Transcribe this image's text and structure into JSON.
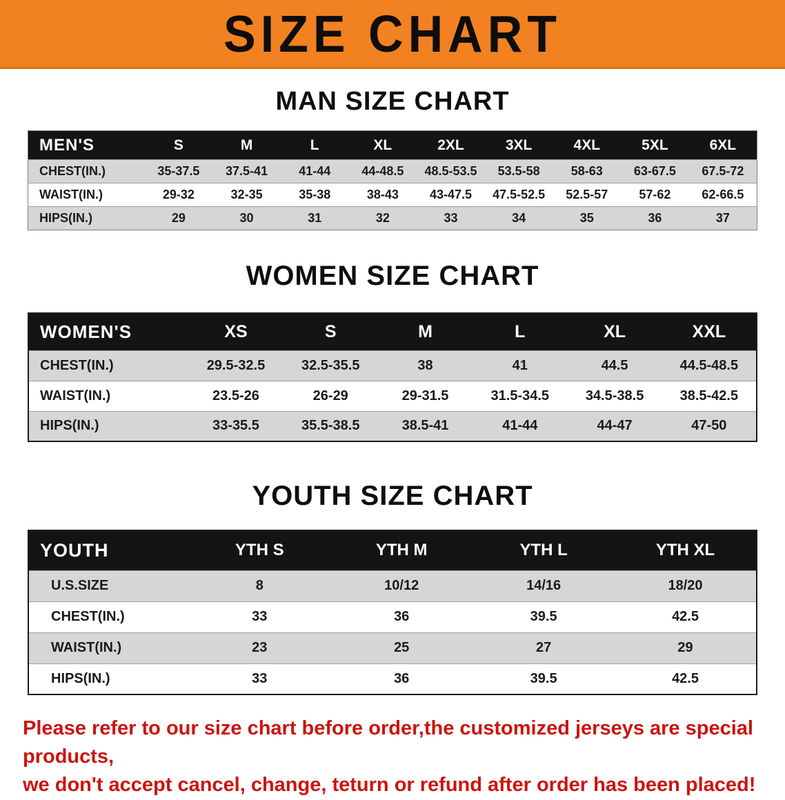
{
  "banner": {
    "title": "SIZE CHART"
  },
  "colors": {
    "banner_orange": "#f28121",
    "table_header_black": "#141414",
    "row_gray": "#d6d6d6",
    "disclaimer_red": "#cc1410"
  },
  "men": {
    "heading": "MAN SIZE CHART",
    "label": "MEN'S",
    "sizes": [
      "S",
      "M",
      "L",
      "XL",
      "2XL",
      "3XL",
      "4XL",
      "5XL",
      "6XL"
    ],
    "rows": [
      {
        "label": "CHEST(IN.)",
        "values": [
          "35-37.5",
          "37.5-41",
          "41-44",
          "44-48.5",
          "48.5-53.5",
          "53.5-58",
          "58-63",
          "63-67.5",
          "67.5-72"
        ]
      },
      {
        "label": "WAIST(IN.)",
        "values": [
          "29-32",
          "32-35",
          "35-38",
          "38-43",
          "43-47.5",
          "47.5-52.5",
          "52.5-57",
          "57-62",
          "62-66.5"
        ]
      },
      {
        "label": "HIPS(IN.)",
        "values": [
          "29",
          "30",
          "31",
          "32",
          "33",
          "34",
          "35",
          "36",
          "37"
        ]
      }
    ]
  },
  "women": {
    "heading": "WOMEN SIZE CHART",
    "label": "WOMEN'S",
    "sizes": [
      "XS",
      "S",
      "M",
      "L",
      "XL",
      "XXL"
    ],
    "rows": [
      {
        "label": "CHEST(IN.)",
        "values": [
          "29.5-32.5",
          "32.5-35.5",
          "38",
          "41",
          "44.5",
          "44.5-48.5"
        ]
      },
      {
        "label": "WAIST(IN.)",
        "values": [
          "23.5-26",
          "26-29",
          "29-31.5",
          "31.5-34.5",
          "34.5-38.5",
          "38.5-42.5"
        ]
      },
      {
        "label": "HIPS(IN.)",
        "values": [
          "33-35.5",
          "35.5-38.5",
          "38.5-41",
          "41-44",
          "44-47",
          "47-50"
        ]
      }
    ]
  },
  "youth": {
    "heading": "YOUTH SIZE CHART",
    "label": "YOUTH",
    "sizes": [
      "YTH S",
      "YTH M",
      "YTH L",
      "YTH XL"
    ],
    "rows": [
      {
        "label": "U.S.SIZE",
        "values": [
          "8",
          "10/12",
          "14/16",
          "18/20"
        ]
      },
      {
        "label": "CHEST(IN.)",
        "values": [
          "33",
          "36",
          "39.5",
          "42.5"
        ]
      },
      {
        "label": "WAIST(IN.)",
        "values": [
          "23",
          "25",
          "27",
          "29"
        ]
      },
      {
        "label": "HIPS(IN.)",
        "values": [
          "33",
          "36",
          "39.5",
          "42.5"
        ]
      }
    ]
  },
  "disclaimer": {
    "line1": "Please refer to our size chart before order,the customized jerseys are special products,",
    "line2": "we don't accept cancel, change, teturn or refund after order has been placed!"
  }
}
